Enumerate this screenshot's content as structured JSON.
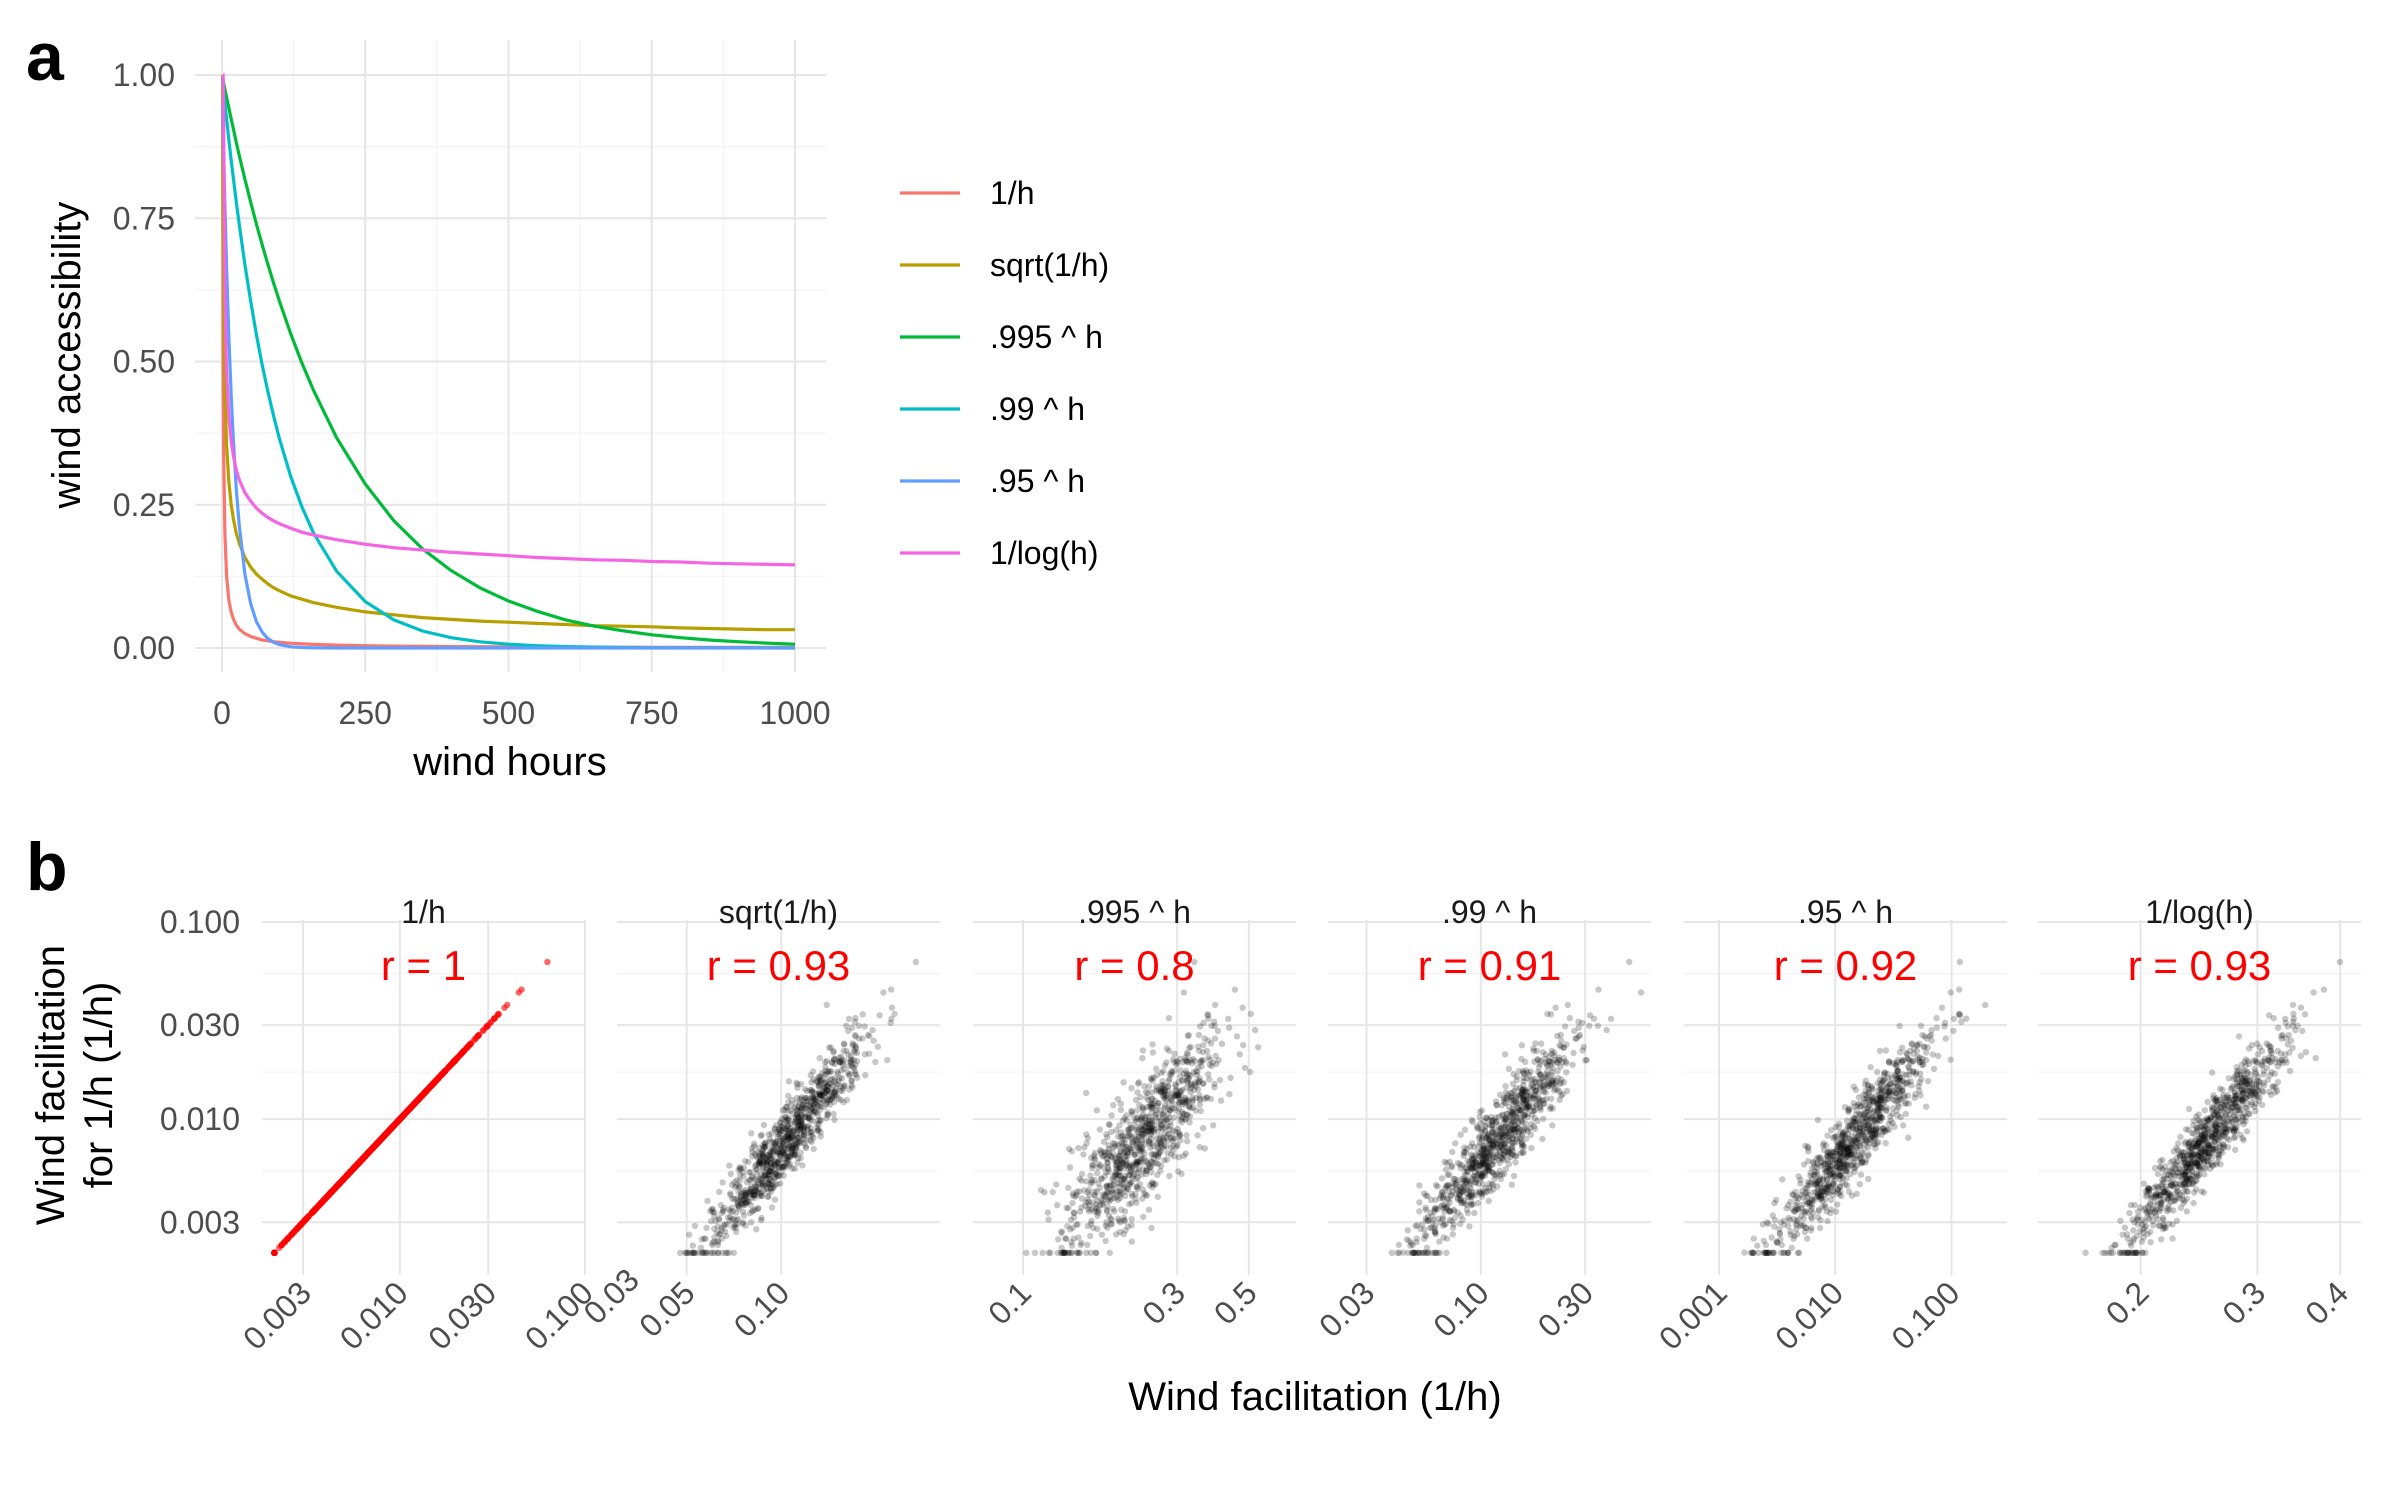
{
  "panels": [
    {
      "letter": "a"
    },
    {
      "letter": "b"
    }
  ],
  "chart_data": [
    {
      "type": "line",
      "xlabel": "wind hours",
      "ylabel": "wind accessibility",
      "xlim": [
        0,
        1000
      ],
      "ylim": [
        0,
        1
      ],
      "x_ticks": [
        0,
        250,
        500,
        750,
        1000
      ],
      "x_tick_labels": [
        "0",
        "250",
        "500",
        "750",
        "1000"
      ],
      "y_ticks": [
        0,
        0.25,
        0.5,
        0.75,
        1.0
      ],
      "y_tick_labels": [
        "0.00",
        "0.25",
        "0.50",
        "0.75",
        "1.00"
      ],
      "grid": true,
      "legend": "right",
      "x": [
        1,
        2,
        3,
        5,
        8,
        12,
        16,
        20,
        25,
        30,
        40,
        50,
        60,
        70,
        80,
        90,
        100,
        120,
        140,
        160,
        200,
        250,
        300,
        350,
        400,
        450,
        500,
        550,
        600,
        650,
        700,
        750,
        800,
        850,
        900,
        950,
        1000
      ],
      "series": [
        {
          "name": "1/h",
          "color": "#F8766D",
          "values": [
            1,
            0.5,
            0.333,
            0.2,
            0.125,
            0.083,
            0.0625,
            0.05,
            0.04,
            0.033,
            0.025,
            0.02,
            0.017,
            0.014,
            0.0125,
            0.011,
            0.01,
            0.0083,
            0.0071,
            0.0063,
            0.005,
            0.004,
            0.0033,
            0.0029,
            0.0025,
            0.0022,
            0.002,
            0.0018,
            0.0017,
            0.0015,
            0.0014,
            0.0013,
            0.00125,
            0.0012,
            0.0011,
            0.00105,
            0.001
          ]
        },
        {
          "name": "sqrt(1/h)",
          "color": "#B79F00",
          "values": [
            1,
            0.707,
            0.577,
            0.447,
            0.354,
            0.289,
            0.25,
            0.224,
            0.2,
            0.183,
            0.158,
            0.141,
            0.129,
            0.12,
            0.112,
            0.105,
            0.1,
            0.091,
            0.085,
            0.079,
            0.071,
            0.063,
            0.058,
            0.053,
            0.05,
            0.047,
            0.045,
            0.043,
            0.041,
            0.039,
            0.038,
            0.037,
            0.035,
            0.034,
            0.033,
            0.032,
            0.032
          ]
        },
        {
          "name": ".995 ^ h",
          "color": "#00BA38",
          "values": [
            0.995,
            0.99,
            0.985,
            0.975,
            0.961,
            0.942,
            0.923,
            0.905,
            0.882,
            0.86,
            0.818,
            0.778,
            0.74,
            0.704,
            0.67,
            0.637,
            0.606,
            0.548,
            0.496,
            0.449,
            0.367,
            0.286,
            0.222,
            0.173,
            0.135,
            0.105,
            0.082,
            0.064,
            0.049,
            0.038,
            0.03,
            0.023,
            0.018,
            0.014,
            0.011,
            0.0086,
            0.0067
          ]
        },
        {
          "name": ".99 ^ h",
          "color": "#00BFC4",
          "values": [
            0.99,
            0.98,
            0.97,
            0.951,
            0.923,
            0.886,
            0.851,
            0.818,
            0.778,
            0.74,
            0.669,
            0.605,
            0.547,
            0.495,
            0.448,
            0.405,
            0.366,
            0.299,
            0.245,
            0.2,
            0.134,
            0.081,
            0.049,
            0.0297,
            0.018,
            0.0109,
            0.0066,
            0.004,
            0.0024,
            0.0015,
            0.0009,
            0.0005,
            0.0003,
            0.0002,
            0.0001,
            0.0001,
            0
          ]
        },
        {
          "name": ".95 ^ h",
          "color": "#619CFF",
          "values": [
            0.95,
            0.903,
            0.857,
            0.774,
            0.663,
            0.54,
            0.44,
            0.358,
            0.277,
            0.215,
            0.129,
            0.077,
            0.046,
            0.028,
            0.0165,
            0.0099,
            0.0059,
            0.0021,
            0.0008,
            0.0003,
            0,
            0,
            0,
            0,
            0,
            0,
            0,
            0,
            0,
            0,
            0,
            0,
            0,
            0,
            0,
            0,
            0
          ]
        },
        {
          "name": "1/log(h)",
          "color": "#F564E3",
          "values": [
            1,
            1,
            0.91,
            0.621,
            0.481,
            0.402,
            0.361,
            0.334,
            0.311,
            0.294,
            0.271,
            0.256,
            0.244,
            0.235,
            0.228,
            0.222,
            0.217,
            0.209,
            0.202,
            0.197,
            0.189,
            0.181,
            0.175,
            0.171,
            0.167,
            0.164,
            0.161,
            0.158,
            0.156,
            0.154,
            0.153,
            0.151,
            0.15,
            0.148,
            0.147,
            0.146,
            0.145
          ]
        }
      ]
    },
    {
      "type": "scatter",
      "xlabel": "Wind facilitation (1/h)",
      "ylabel": "Wind facilitation\nfor 1/h (1/h)",
      "y_scale": "log",
      "ylim": [
        0.002,
        0.1
      ],
      "y_ticks": [
        0.003,
        0.01,
        0.03,
        0.1
      ],
      "y_tick_labels": [
        "0.003",
        "0.010",
        "0.030",
        "0.100"
      ],
      "x_scale": "log",
      "grid": true,
      "facets": [
        {
          "name": "1/h",
          "r_label": "r = 1",
          "r": 1,
          "color": "#FF0000",
          "xlim": [
            0.0018,
            0.1
          ],
          "x_ticks": [
            0.003,
            0.01,
            0.03,
            0.1
          ],
          "x_tick_labels": [
            "0.003",
            "0.010",
            "0.030",
            "0.100"
          ],
          "x_axis_extra_labels": [
            "0.03"
          ]
        },
        {
          "name": "sqrt(1/h)",
          "r_label": "r = 0.93",
          "r": 0.93,
          "color": "#000000",
          "xlim": [
            0.03,
            0.32
          ],
          "x_ticks": [
            0.05,
            0.1
          ],
          "x_tick_labels": [
            "0.05",
            "0.10"
          ]
        },
        {
          "name": ".995 ^ h",
          "r_label": "r = 0.8",
          "r": 0.8,
          "color": "#000000",
          "xlim": [
            0.07,
            0.7
          ],
          "x_ticks": [
            0.1,
            0.3,
            0.5
          ],
          "x_tick_labels": [
            "0.1",
            "0.3",
            "0.5"
          ]
        },
        {
          "name": ".99 ^ h",
          "r_label": "r = 0.91",
          "r": 0.91,
          "color": "#000000",
          "xlim": [
            0.02,
            0.6
          ],
          "x_ticks": [
            0.03,
            0.1,
            0.3
          ],
          "x_tick_labels": [
            "0.03",
            "0.10",
            "0.30"
          ]
        },
        {
          "name": ".95 ^ h",
          "r_label": "r = 0.92",
          "r": 0.92,
          "color": "#000000",
          "xlim": [
            0.0005,
            0.3
          ],
          "x_ticks": [
            0.001,
            0.01,
            0.1
          ],
          "x_tick_labels": [
            "0.001",
            "0.010",
            "0.100"
          ]
        },
        {
          "name": "1/log(h)",
          "r_label": "r = 0.93",
          "r": 0.93,
          "color": "#000000",
          "xlim": [
            0.14,
            0.43
          ],
          "x_ticks": [
            0.2,
            0.3,
            0.4
          ],
          "x_tick_labels": [
            "0.2",
            "0.3",
            "0.4"
          ]
        }
      ]
    }
  ]
}
